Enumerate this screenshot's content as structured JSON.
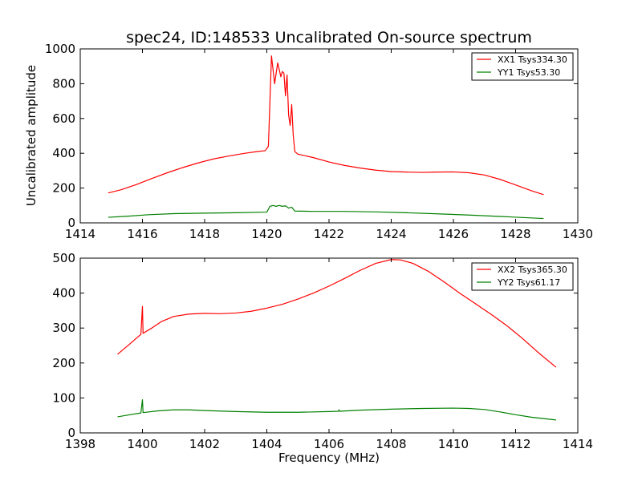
{
  "chart_data": [
    {
      "type": "line",
      "title": "spec24, ID:148533 Uncalibrated On-source spectrum",
      "xlabel": "",
      "ylabel": "Uncalibrated amplitude",
      "xlim": [
        1414,
        1430
      ],
      "ylim": [
        0,
        1000
      ],
      "xticks": [
        "1414",
        "1416",
        "1418",
        "1420",
        "1422",
        "1424",
        "1426",
        "1428",
        "1430"
      ],
      "yticks": [
        "0",
        "200",
        "400",
        "600",
        "800",
        "1000"
      ],
      "legend_position": "top-right",
      "series": [
        {
          "name": "XX1 Tsys334.30",
          "color": "#ff0000",
          "points": [
            [
              1414.9,
              172
            ],
            [
              1415.3,
              190
            ],
            [
              1415.8,
              220
            ],
            [
              1416.3,
              255
            ],
            [
              1416.8,
              288
            ],
            [
              1417.3,
              318
            ],
            [
              1417.8,
              345
            ],
            [
              1418.3,
              368
            ],
            [
              1418.8,
              385
            ],
            [
              1419.3,
              400
            ],
            [
              1419.7,
              410
            ],
            [
              1419.95,
              415
            ],
            [
              1420.05,
              440
            ],
            [
              1420.1,
              700
            ],
            [
              1420.15,
              960
            ],
            [
              1420.2,
              880
            ],
            [
              1420.25,
              800
            ],
            [
              1420.3,
              860
            ],
            [
              1420.35,
              920
            ],
            [
              1420.4,
              880
            ],
            [
              1420.45,
              840
            ],
            [
              1420.5,
              870
            ],
            [
              1420.55,
              860
            ],
            [
              1420.6,
              730
            ],
            [
              1420.65,
              850
            ],
            [
              1420.7,
              620
            ],
            [
              1420.75,
              560
            ],
            [
              1420.8,
              680
            ],
            [
              1420.85,
              500
            ],
            [
              1420.9,
              410
            ],
            [
              1421.0,
              395
            ],
            [
              1421.5,
              375
            ],
            [
              1422.0,
              350
            ],
            [
              1422.5,
              330
            ],
            [
              1423.0,
              315
            ],
            [
              1423.5,
              303
            ],
            [
              1424.0,
              295
            ],
            [
              1424.5,
              292
            ],
            [
              1425.0,
              290
            ],
            [
              1425.5,
              292
            ],
            [
              1426.0,
              293
            ],
            [
              1426.5,
              288
            ],
            [
              1427.0,
              275
            ],
            [
              1427.5,
              250
            ],
            [
              1428.0,
              218
            ],
            [
              1428.5,
              185
            ],
            [
              1428.9,
              162
            ]
          ]
        },
        {
          "name": "YY1 Tsys53.30",
          "color": "#008000",
          "points": [
            [
              1414.9,
              32
            ],
            [
              1415.5,
              38
            ],
            [
              1416.2,
              47
            ],
            [
              1417.0,
              53
            ],
            [
              1418.0,
              56
            ],
            [
              1419.0,
              58
            ],
            [
              1420.0,
              62
            ],
            [
              1420.1,
              95
            ],
            [
              1420.2,
              100
            ],
            [
              1420.3,
              95
            ],
            [
              1420.4,
              100
            ],
            [
              1420.5,
              95
            ],
            [
              1420.6,
              98
            ],
            [
              1420.7,
              85
            ],
            [
              1420.8,
              90
            ],
            [
              1420.9,
              68
            ],
            [
              1421.5,
              66
            ],
            [
              1422.5,
              66
            ],
            [
              1423.5,
              63
            ],
            [
              1424.5,
              58
            ],
            [
              1425.5,
              52
            ],
            [
              1426.5,
              45
            ],
            [
              1427.5,
              37
            ],
            [
              1428.9,
              25
            ]
          ]
        }
      ]
    },
    {
      "type": "line",
      "title": "",
      "xlabel": "Frequency (MHz)",
      "ylabel": "",
      "xlim": [
        1398,
        1414
      ],
      "ylim": [
        0,
        500
      ],
      "xticks": [
        "1398",
        "1400",
        "1402",
        "1404",
        "1406",
        "1408",
        "1410",
        "1412",
        "1414"
      ],
      "yticks": [
        "0",
        "100",
        "200",
        "300",
        "400",
        "500"
      ],
      "legend_position": "top-right",
      "series": [
        {
          "name": "XX2 Tsys365.30",
          "color": "#ff0000",
          "points": [
            [
              1399.2,
              225
            ],
            [
              1399.6,
              255
            ],
            [
              1399.95,
              282
            ],
            [
              1400.0,
              362
            ],
            [
              1400.02,
              285
            ],
            [
              1400.3,
              300
            ],
            [
              1400.6,
              318
            ],
            [
              1401.0,
              333
            ],
            [
              1401.5,
              340
            ],
            [
              1402.0,
              342
            ],
            [
              1402.5,
              341
            ],
            [
              1403.0,
              343
            ],
            [
              1403.5,
              348
            ],
            [
              1404.0,
              357
            ],
            [
              1404.5,
              368
            ],
            [
              1405.0,
              383
            ],
            [
              1405.5,
              400
            ],
            [
              1406.0,
              420
            ],
            [
              1406.5,
              442
            ],
            [
              1407.0,
              465
            ],
            [
              1407.5,
              485
            ],
            [
              1408.0,
              496
            ],
            [
              1408.3,
              495
            ],
            [
              1408.7,
              485
            ],
            [
              1409.2,
              462
            ],
            [
              1409.7,
              432
            ],
            [
              1410.2,
              400
            ],
            [
              1410.7,
              370
            ],
            [
              1411.2,
              340
            ],
            [
              1411.7,
              308
            ],
            [
              1412.2,
              272
            ],
            [
              1412.7,
              232
            ],
            [
              1413.3,
              188
            ]
          ]
        },
        {
          "name": "YY2 Tsys61.17",
          "color": "#008000",
          "points": [
            [
              1399.2,
              46
            ],
            [
              1399.6,
              52
            ],
            [
              1399.95,
              57
            ],
            [
              1400.0,
              95
            ],
            [
              1400.02,
              58
            ],
            [
              1400.5,
              63
            ],
            [
              1401.0,
              66
            ],
            [
              1401.5,
              66
            ],
            [
              1402.0,
              64
            ],
            [
              1403.0,
              61
            ],
            [
              1404.0,
              59
            ],
            [
              1405.0,
              59
            ],
            [
              1406.0,
              61
            ],
            [
              1406.3,
              62
            ],
            [
              1406.32,
              66
            ],
            [
              1406.34,
              62
            ],
            [
              1407.0,
              65
            ],
            [
              1408.0,
              68
            ],
            [
              1409.0,
              70
            ],
            [
              1410.0,
              71
            ],
            [
              1410.5,
              70
            ],
            [
              1411.0,
              67
            ],
            [
              1411.5,
              60
            ],
            [
              1412.0,
              52
            ],
            [
              1412.5,
              45
            ],
            [
              1413.3,
              37
            ]
          ]
        }
      ]
    }
  ]
}
